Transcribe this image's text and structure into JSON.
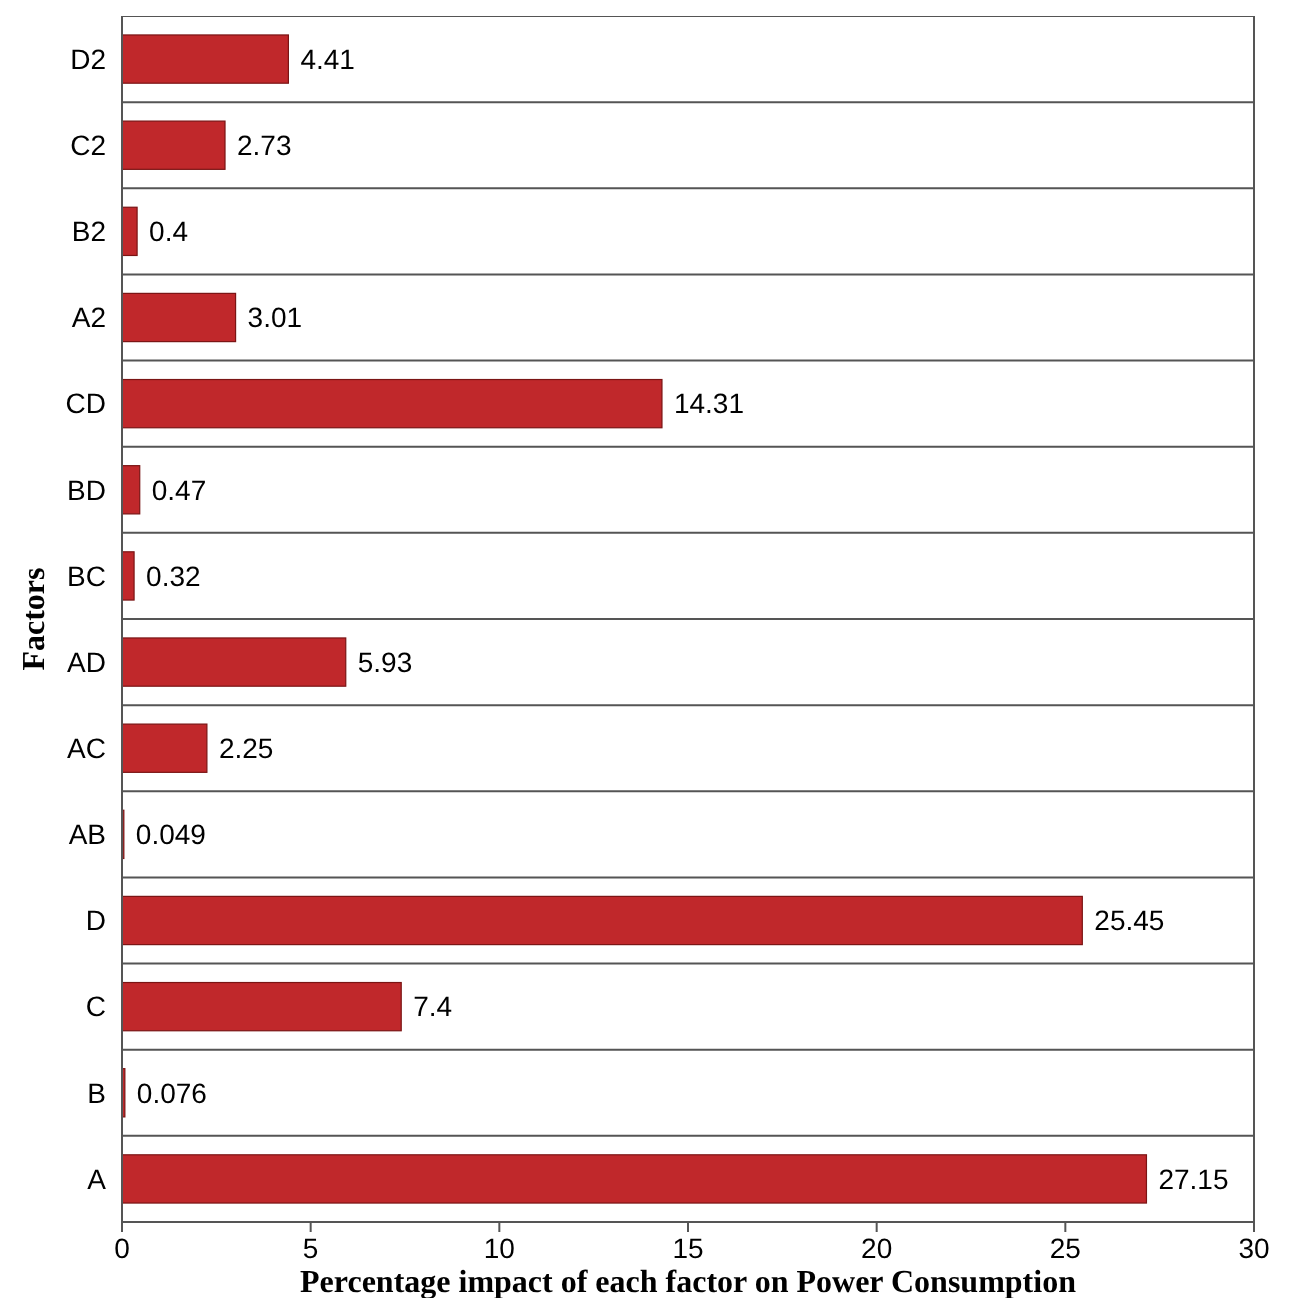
{
  "chart_data": {
    "type": "bar",
    "orientation": "horizontal",
    "xlabel": "Percentage impact of each factor on Power Consumption",
    "ylabel": "Factors",
    "categories": [
      "D2",
      "C2",
      "B2",
      "A2",
      "CD",
      "BD",
      "BC",
      "AD",
      "AC",
      "AB",
      "D",
      "C",
      "B",
      "A"
    ],
    "values": [
      4.41,
      2.73,
      0.4,
      3.01,
      14.31,
      0.47,
      0.32,
      5.93,
      2.25,
      0.049,
      25.45,
      7.4,
      0.076,
      27.15
    ],
    "color": "#c0282b",
    "xlim": [
      0,
      30
    ],
    "xticks": [
      0,
      5,
      10,
      15,
      20,
      25,
      30
    ],
    "grid": "y",
    "data_labels": true
  }
}
